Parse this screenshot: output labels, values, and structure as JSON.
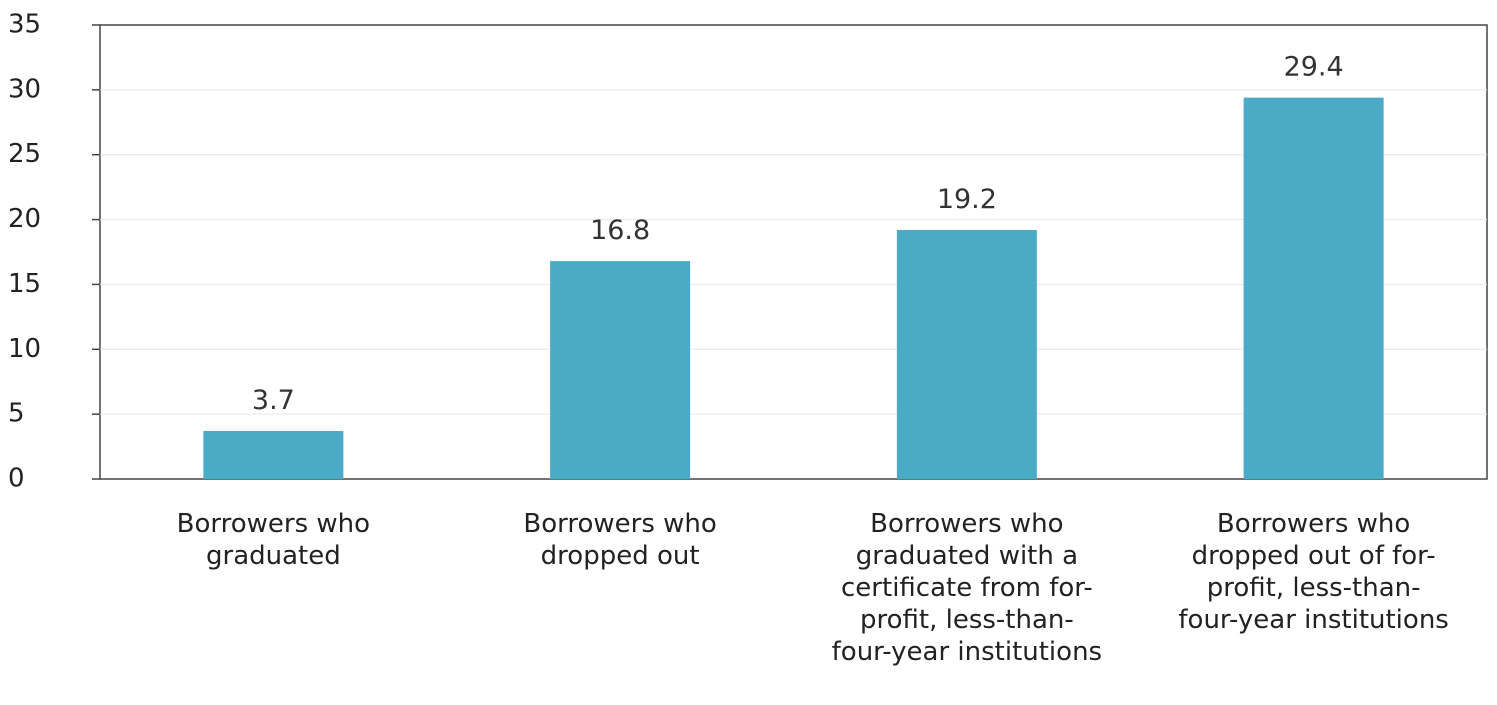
{
  "chart_data": {
    "type": "bar",
    "categories": [
      [
        "Borrowers who",
        "graduated"
      ],
      [
        "Borrowers who",
        "dropped out"
      ],
      [
        "Borrowers who",
        "graduated with a",
        "certificate from for-",
        "profit, less-than-",
        "four-year institutions"
      ],
      [
        "Borrowers who",
        "dropped out of for-",
        "profit, less-than-",
        "four-year institutions"
      ]
    ],
    "values": [
      3.7,
      16.8,
      19.2,
      29.4
    ],
    "data_labels": [
      "3.7",
      "16.8",
      "19.2",
      "29.4"
    ],
    "y_ticks": [
      0,
      5,
      10,
      15,
      20,
      25,
      30,
      35
    ],
    "ylim": [
      0,
      35
    ],
    "grid": true,
    "legend": "none",
    "title": "",
    "xlabel": "",
    "ylabel": "",
    "bar_color": "#4BABC6",
    "grid_color": "#e6e6e6",
    "axis_color": "#444444"
  }
}
